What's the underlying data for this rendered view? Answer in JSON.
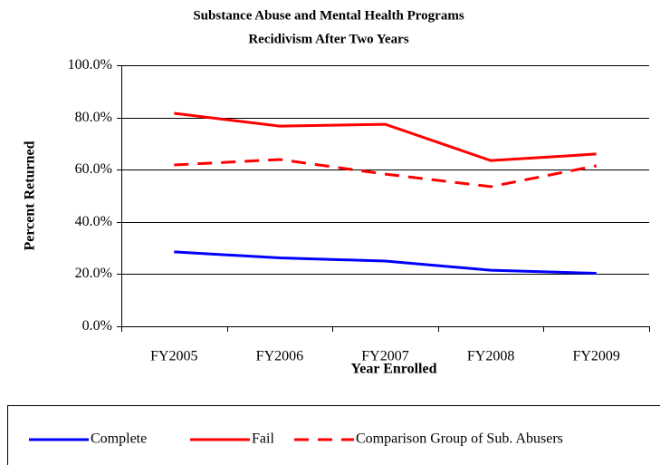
{
  "chart_data": {
    "type": "line",
    "title": [
      "Substance Abuse and Mental Health  Programs",
      "Recidivism After Two Years"
    ],
    "x_label": "Year Enrolled",
    "y_label": "Percent Returned",
    "categories": [
      "FY2005",
      "FY2006",
      "FY2007",
      "FY2008",
      "FY2009"
    ],
    "series": [
      {
        "name": "Complete",
        "color": "#0000ff",
        "dashed": false,
        "values": [
          28.5,
          26.2,
          25.0,
          21.5,
          20.3
        ]
      },
      {
        "name": "Fail",
        "color": "#ff0000",
        "dashed": false,
        "values": [
          81.6,
          76.7,
          77.4,
          63.5,
          66.0
        ]
      },
      {
        "name": "Comparison Group of Sub. Abusers",
        "color": "#ff0000",
        "dashed": true,
        "values": [
          61.8,
          63.9,
          58.3,
          53.5,
          61.5
        ]
      }
    ],
    "ylim": [
      0,
      100
    ],
    "yticks": [
      {
        "value": 0,
        "label": "0.0%"
      },
      {
        "value": 20,
        "label": "20.0%"
      },
      {
        "value": 40,
        "label": "40.0%"
      },
      {
        "value": 60,
        "label": "60.0%"
      },
      {
        "value": 80,
        "label": "80.0%"
      },
      {
        "value": 100,
        "label": "100.0%"
      }
    ],
    "grid": true,
    "legend": "bottom"
  }
}
